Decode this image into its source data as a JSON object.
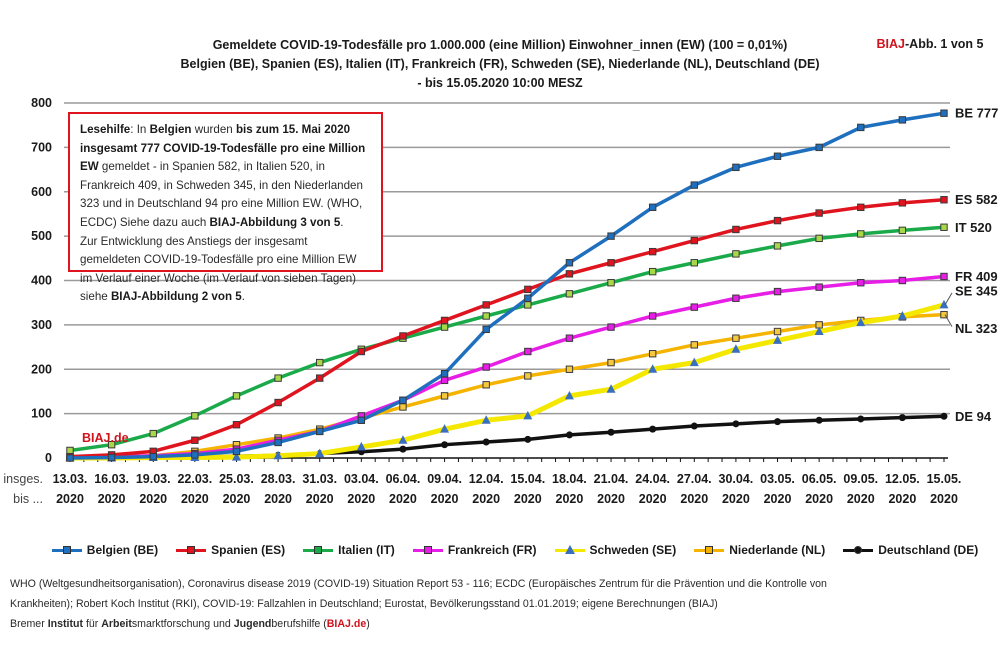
{
  "header": {
    "title_lines": [
      "Gemeldete COVID-19-Todesfälle pro 1.000.000 (eine Million) Einwohner_innen (EW) (100 = 0,01%)",
      "Belgien (BE), Spanien (ES), Italien (IT), Frankreich (FR), Schweden (SE), Niederlande (NL), Deutschland (DE)",
      "- bis 15.05.2020 10:00 MESZ"
    ],
    "badge_brand": "BIAJ",
    "badge_rest": "-Abb. 1 von 5"
  },
  "note": {
    "p1_a": "Lesehilfe",
    "p1_b": ": In ",
    "p1_c": "Belgien",
    "p1_d": " wurden ",
    "p1_e": "bis zum 15. Mai 2020 insgesamt 777 COVID-19-Todesfälle pro eine Million EW",
    "p1_f": " gemeldet - in Spanien 582, in Italien 520, in Frankreich 409, in Schweden 345, in den Niederlanden 323 und in Deutschland 94 pro eine Million EW. (WHO, ECDC) Siehe dazu auch ",
    "p1_g": "BIAJ",
    "p1_h": "-Abbildung 3 von 5",
    "p1_i": ".",
    "p2_a": "Zur Entwicklung des Anstiegs der insgesamt gemeldeten COVID-19-Todesfälle pro eine Million EW im Verlauf einer Woche (im Verlauf von sieben Tagen) siehe ",
    "p2_b": "BIAJ",
    "p2_c": "-Abbildung 2 von 5",
    "p2_d": "."
  },
  "watermark": "BIAJ.de",
  "sources": {
    "line1": "WHO (Weltgesundheitsorganisation), Coronavirus disease 2019 (COVID-19) Situation Report 53 - 116;  ECDC (Europäisches Zentrum für die Prävention und die Kontrolle von",
    "line2": "Krankheiten); Robert Koch Institut (RKI), COVID-19: Fallzahlen in Deutschland;  Eurostat, Bevölkerungsstand 01.01.2019; eigene Berechnungen (BIAJ)",
    "line3_a": "Bremer ",
    "line3_b": "Institut",
    "line3_c": " für ",
    "line3_d": "Arbeit",
    "line3_e": "smarktforschung und ",
    "line3_f": "Jugend",
    "line3_g": "berufshilfe (",
    "line3_h": "BIAJ.de",
    "line3_i": ")"
  },
  "chart_data": {
    "type": "line",
    "title": "Gemeldete COVID-19-Todesfälle pro 1.000.000 (eine Million) Einwohner_innen (EW) (100 = 0,01%)",
    "subtitle": "Belgien (BE), Spanien (ES), Italien (IT), Frankreich (FR), Schweden (SE), Niederlande (NL), Deutschland (DE) - bis 15.05.2020 10:00 MESZ",
    "xlabel_prefix": [
      "insges.",
      "bis ..."
    ],
    "ylabel": "",
    "ylim": [
      0,
      800
    ],
    "yticks": [
      0,
      100,
      200,
      300,
      400,
      500,
      600,
      700,
      800
    ],
    "grid": true,
    "legend_position": "bottom",
    "x": [
      "13.03.",
      "16.03.",
      "19.03.",
      "22.03.",
      "25.03.",
      "28.03.",
      "31.03.",
      "03.04.",
      "06.04.",
      "09.04.",
      "12.04.",
      "15.04.",
      "18.04.",
      "21.04.",
      "24.04.",
      "27.04.",
      "30.04.",
      "03.05.",
      "06.05.",
      "09.05.",
      "12.05.",
      "15.05."
    ],
    "x_year": "2020",
    "series": [
      {
        "name": "Belgien (BE)",
        "short": "BE",
        "color": "#1f6fbf",
        "marker": "square",
        "values": [
          0,
          1,
          3,
          7,
          15,
          35,
          60,
          85,
          130,
          190,
          290,
          360,
          440,
          500,
          565,
          615,
          655,
          680,
          700,
          745,
          762,
          777
        ],
        "end_label": "BE 777"
      },
      {
        "name": "Spanien (ES)",
        "short": "ES",
        "color": "#e0141e",
        "marker": "square",
        "values": [
          3,
          7,
          15,
          40,
          75,
          125,
          180,
          240,
          275,
          310,
          345,
          380,
          415,
          440,
          465,
          490,
          515,
          535,
          552,
          565,
          575,
          582
        ],
        "end_label": "ES 582"
      },
      {
        "name": "Italien (IT)",
        "short": "IT",
        "color": "#1aaa4a",
        "marker": "square",
        "values": [
          17,
          30,
          55,
          95,
          140,
          180,
          215,
          245,
          270,
          295,
          320,
          345,
          370,
          395,
          420,
          440,
          460,
          478,
          495,
          505,
          513,
          520
        ],
        "end_label": "IT 520"
      },
      {
        "name": "Frankreich (FR)",
        "short": "FR",
        "color": "#e61ee6",
        "marker": "square",
        "values": [
          1,
          2,
          5,
          10,
          20,
          40,
          60,
          95,
          130,
          175,
          205,
          240,
          270,
          295,
          320,
          340,
          360,
          375,
          385,
          395,
          400,
          409
        ],
        "end_label": "FR 409"
      },
      {
        "name": "Schweden (SE)",
        "short": "SE",
        "color": "#f5e800",
        "marker": "triangle",
        "values": [
          0,
          0,
          1,
          1,
          2,
          5,
          10,
          25,
          40,
          65,
          85,
          95,
          140,
          155,
          200,
          215,
          245,
          265,
          285,
          305,
          320,
          345
        ],
        "end_label": "SE 345"
      },
      {
        "name": "Niederlande (NL)",
        "short": "NL",
        "color": "#f5b400",
        "marker": "square",
        "values": [
          1,
          2,
          5,
          15,
          30,
          45,
          65,
          90,
          115,
          140,
          165,
          185,
          200,
          215,
          235,
          255,
          270,
          285,
          300,
          310,
          318,
          323
        ],
        "end_label": "NL 323"
      },
      {
        "name": "Deutschland (DE)",
        "short": "DE",
        "color": "#111111",
        "marker": "circle",
        "values": [
          0,
          0,
          1,
          2,
          4,
          6,
          10,
          14,
          20,
          30,
          36,
          42,
          52,
          58,
          65,
          72,
          77,
          82,
          85,
          88,
          91,
          94
        ],
        "end_label": "DE 94"
      }
    ]
  }
}
